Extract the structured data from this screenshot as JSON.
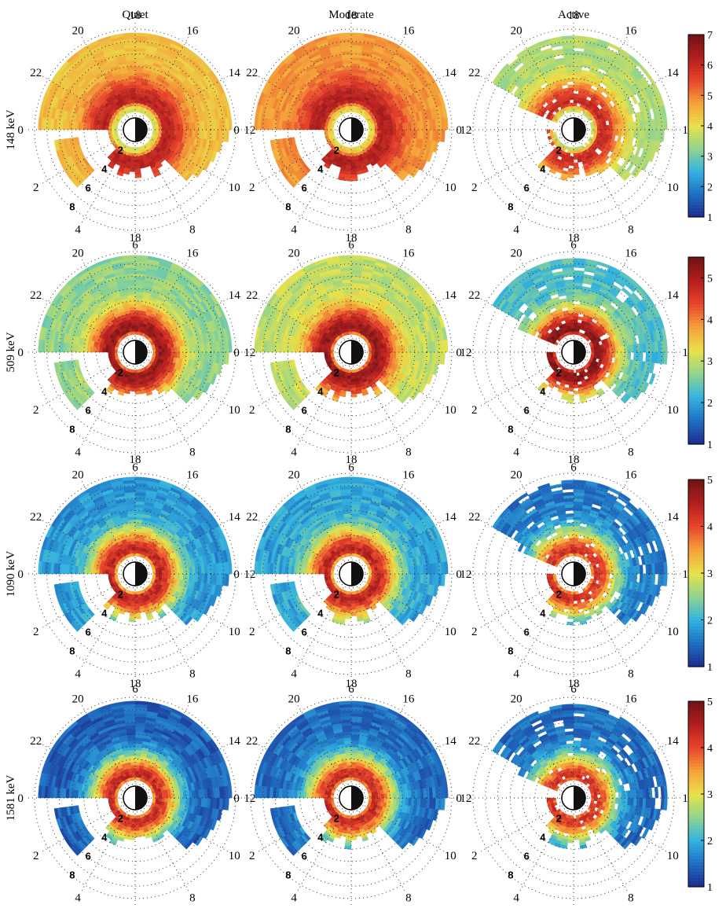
{
  "columns": [
    "Quiet",
    "Moderate",
    "Active"
  ],
  "rows": [
    "148 keV",
    "509 keV",
    "1090 keV",
    "1581 keV"
  ],
  "mlt_labels": [
    "0",
    "2",
    "4",
    "6",
    "8",
    "10",
    "12",
    "14",
    "16",
    "18",
    "20",
    "22"
  ],
  "l_labels": [
    "2",
    "4",
    "6",
    "8"
  ],
  "colorbars": [
    {
      "row": "148 keV",
      "ticks": [
        "1",
        "2",
        "3",
        "4",
        "5",
        "6",
        "7"
      ],
      "min": 1,
      "max": 7
    },
    {
      "row": "509 keV",
      "ticks": [
        "1",
        "2",
        "3",
        "4",
        "5"
      ],
      "min": 1,
      "max": 5.5
    },
    {
      "row": "1090 keV",
      "ticks": [
        "1",
        "2",
        "3",
        "4",
        "5"
      ],
      "min": 1,
      "max": 5
    },
    {
      "row": "1581 keV",
      "ticks": [
        "1",
        "2",
        "3",
        "4",
        "5"
      ],
      "min": 1,
      "max": 5
    }
  ],
  "colors": {
    "colormap": [
      "#1e2b8f",
      "#1f6ec2",
      "#33b3e0",
      "#8fd48f",
      "#e8e24a",
      "#f5a23a",
      "#e8452c",
      "#b41e1e",
      "#6e1414"
    ],
    "earth_night": "#111111",
    "earth_day": "#ffffff",
    "grid": "#333333"
  },
  "chart_data": {
    "type": "heatmap",
    "description_axes": "polar: angle = MLT (hours), radius = L",
    "mlt_ticks": [
      0,
      2,
      4,
      6,
      8,
      10,
      12,
      14,
      16,
      18,
      20,
      22
    ],
    "l_ticks": [
      2,
      4,
      6,
      8
    ],
    "l_range": [
      1,
      8.5
    ],
    "panels": [
      {
        "row": "148 keV",
        "column": "Quiet",
        "peak_l": 2.8,
        "peak_value": 6.2,
        "outer_value": 4.4,
        "inner_value": 3.8,
        "coverage_mlt": [
          12,
          24
        ],
        "day_partial": true
      },
      {
        "row": "148 keV",
        "column": "Moderate",
        "peak_l": 2.8,
        "peak_value": 6.3,
        "outer_value": 4.8,
        "inner_value": 4.0,
        "coverage_mlt": [
          12,
          24
        ],
        "day_partial": true
      },
      {
        "row": "148 keV",
        "column": "Active",
        "peak_l": 2.6,
        "peak_value": 6.0,
        "outer_value": 3.5,
        "inner_value": 3.5,
        "coverage_mlt": [
          12,
          22.5
        ],
        "day_partial": true
      },
      {
        "row": "509 keV",
        "column": "Quiet",
        "peak_l": 2.3,
        "peak_value": 5.2,
        "outer_value": 2.7,
        "inner_value": 3.0,
        "coverage_mlt": [
          12,
          24
        ],
        "day_partial": true
      },
      {
        "row": "509 keV",
        "column": "Moderate",
        "peak_l": 2.3,
        "peak_value": 5.2,
        "outer_value": 3.0,
        "inner_value": 3.0,
        "coverage_mlt": [
          12,
          24
        ],
        "day_partial": true
      },
      {
        "row": "509 keV",
        "column": "Active",
        "peak_l": 2.2,
        "peak_value": 5.3,
        "outer_value": 2.3,
        "inner_value": 3.0,
        "coverage_mlt": [
          12,
          22.5
        ],
        "day_partial": true
      },
      {
        "row": "1090 keV",
        "column": "Quiet",
        "peak_l": 2.3,
        "peak_value": 4.4,
        "outer_value": 1.8,
        "inner_value": 2.5,
        "coverage_mlt": [
          12,
          24
        ],
        "day_partial": true
      },
      {
        "row": "1090 keV",
        "column": "Moderate",
        "peak_l": 2.3,
        "peak_value": 4.4,
        "outer_value": 1.9,
        "inner_value": 2.5,
        "coverage_mlt": [
          12,
          24
        ],
        "day_partial": true
      },
      {
        "row": "1090 keV",
        "column": "Active",
        "peak_l": 2.2,
        "peak_value": 4.2,
        "outer_value": 1.6,
        "inner_value": 2.3,
        "coverage_mlt": [
          12,
          22.5
        ],
        "day_partial": true
      },
      {
        "row": "1581 keV",
        "column": "Quiet",
        "peak_l": 2.2,
        "peak_value": 4.3,
        "outer_value": 1.4,
        "inner_value": 2.3,
        "coverage_mlt": [
          12,
          24
        ],
        "day_partial": true
      },
      {
        "row": "1581 keV",
        "column": "Moderate",
        "peak_l": 2.2,
        "peak_value": 4.3,
        "outer_value": 1.5,
        "inner_value": 2.3,
        "coverage_mlt": [
          12,
          24
        ],
        "day_partial": true
      },
      {
        "row": "1581 keV",
        "column": "Active",
        "peak_l": 2.1,
        "peak_value": 4.2,
        "outer_value": 1.5,
        "inner_value": 2.2,
        "coverage_mlt": [
          12,
          22.5
        ],
        "day_partial": true
      }
    ]
  }
}
